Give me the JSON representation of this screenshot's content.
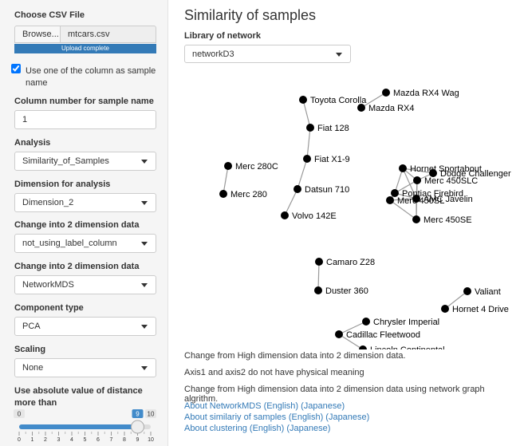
{
  "sidebar": {
    "file_input": {
      "label": "Choose CSV File",
      "button": "Browse...",
      "filename": "mtcars.csv",
      "progress": "Upload complete"
    },
    "checkbox": {
      "label": "Use one of the column as sample name",
      "checked": true
    },
    "fields": [
      {
        "label": "Column number for sample name",
        "value": "1"
      },
      {
        "label": "Analysis",
        "value": "Similarity_of_Samples"
      },
      {
        "label": "Dimension for analysis",
        "value": "Dimension_2"
      },
      {
        "label": "Change into 2 dimension data",
        "value": "not_using_label_column"
      },
      {
        "label": "Change into 2 dimension data",
        "value": "NetworkMDS"
      },
      {
        "label": "Component type",
        "value": "PCA"
      },
      {
        "label": "Scaling",
        "value": "None"
      }
    ],
    "slider": {
      "label": "Use absolute value of distance more than",
      "min": 0,
      "max": 10,
      "value": 9,
      "ticks": [
        0,
        1,
        2,
        3,
        4,
        5,
        6,
        7,
        8,
        9,
        10
      ]
    }
  },
  "main": {
    "title": "Similarity of samples",
    "library": {
      "label": "Library of network",
      "value": "networkD3"
    },
    "network": {
      "nodes": [
        "Toyota Corolla",
        "Fiat 128",
        "Fiat X1-9",
        "Datsun 710",
        "Volvo 142E",
        "Mazda RX4 Wag",
        "Mazda RX4",
        "Merc 280C",
        "Merc 280",
        "Hornet Sportabout",
        "Dodge Challenger",
        "Merc 450SLC",
        "Pontiac Firebird",
        "Merc 450SL",
        "AMC Javelin",
        "Merc 450SE",
        "Camaro Z28",
        "Duster 360",
        "Valiant",
        "Hornet 4 Drive",
        "Chrysler Imperial",
        "Cadillac Fleetwood",
        "Lincoln Continental"
      ]
    },
    "notes": [
      "Change from High dimension data into 2 dimension data.",
      "Axis1 and axis2 do not have physical meaning",
      "Change from High dimension data into 2 dimension data using network graph algrithm."
    ],
    "links": [
      "About NetworkMDS (English) (Japanese)",
      "About similariy of samples (English) (Japanese)",
      "About clustering (English) (Japanese)"
    ]
  }
}
